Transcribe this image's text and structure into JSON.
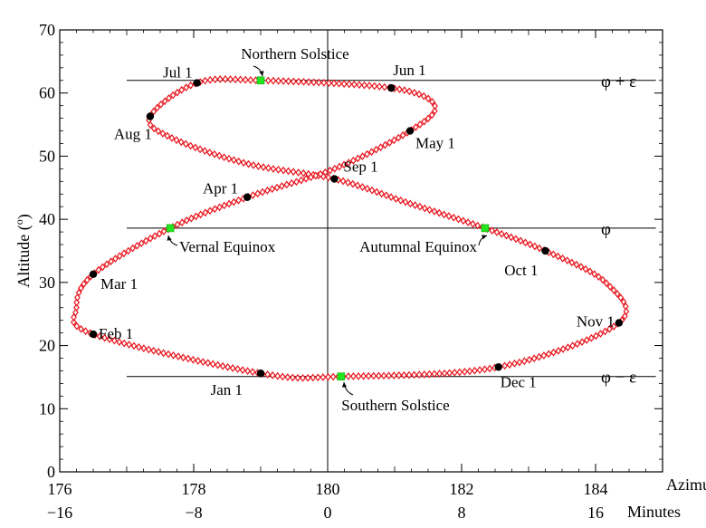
{
  "chart_data": {
    "type": "scatter",
    "title": "",
    "xlabel": "Azimuth(o)",
    "x2label": "Minutes",
    "ylabel": "Altitude (o)",
    "xlim": [
      176,
      185
    ],
    "ylim": [
      0,
      70
    ],
    "x_ticks": [
      176,
      178,
      180,
      182,
      184
    ],
    "x_tick_labels": [
      "176",
      "178",
      "180",
      "182",
      "184"
    ],
    "x2_tick_labels": [
      "−16",
      "−8",
      "0",
      "8",
      "16"
    ],
    "y_ticks": [
      0,
      10,
      20,
      30,
      40,
      50,
      60,
      70
    ],
    "y_tick_labels": [
      "0",
      "10",
      "20",
      "30",
      "40",
      "50",
      "60",
      "70"
    ],
    "grid": false,
    "reference_lines": [
      {
        "label": "φ + ε",
        "y": 62,
        "x_from": 177,
        "x_to": 184.9
      },
      {
        "label": "φ",
        "y": 38.6,
        "x_from": 177,
        "x_to": 184.9
      },
      {
        "label": "φ − ε",
        "y": 15.1,
        "x_from": 177,
        "x_to": 184.9
      }
    ],
    "vertical_line": {
      "x": 180
    },
    "analemma_color": "#e8141c",
    "month_marker_color": "#000000",
    "event_marker_color": "#22e61e",
    "month_markers": [
      {
        "label": "Jan 1",
        "x": 179.0,
        "y": 15.6
      },
      {
        "label": "Feb 1",
        "x": 176.5,
        "y": 21.8
      },
      {
        "label": "Mar 1",
        "x": 176.5,
        "y": 31.3
      },
      {
        "label": "Apr 1",
        "x": 178.8,
        "y": 43.5
      },
      {
        "label": "May 1",
        "x": 181.23,
        "y": 54.0
      },
      {
        "label": "Jun 1",
        "x": 180.95,
        "y": 60.8
      },
      {
        "label": "Jul 1",
        "x": 178.05,
        "y": 61.6
      },
      {
        "label": "Aug 1",
        "x": 177.35,
        "y": 56.3
      },
      {
        "label": "Sep 1",
        "x": 180.1,
        "y": 46.4
      },
      {
        "label": "Oct 1",
        "x": 183.25,
        "y": 35.0
      },
      {
        "label": "Nov 1",
        "x": 184.35,
        "y": 23.6
      },
      {
        "label": "Dec 1",
        "x": 182.55,
        "y": 16.6
      }
    ],
    "events": [
      {
        "label": "Northern Solstice",
        "x": 179.0,
        "y": 62.0
      },
      {
        "label": "Vernal Equinox",
        "x": 177.65,
        "y": 38.6
      },
      {
        "label": "Autumnal Equinox",
        "x": 182.35,
        "y": 38.6
      },
      {
        "label": "Southern Solstice",
        "x": 180.2,
        "y": 15.1
      }
    ],
    "analemma_control_points": [
      {
        "x": 179.0,
        "y": 62.0
      },
      {
        "x": 178.05,
        "y": 61.6
      },
      {
        "x": 177.35,
        "y": 56.3
      },
      {
        "x": 177.65,
        "y": 53.0
      },
      {
        "x": 178.8,
        "y": 48.8
      },
      {
        "x": 180.1,
        "y": 46.4
      },
      {
        "x": 181.2,
        "y": 42.6
      },
      {
        "x": 182.35,
        "y": 38.6
      },
      {
        "x": 183.25,
        "y": 35.0
      },
      {
        "x": 184.15,
        "y": 30.0
      },
      {
        "x": 184.35,
        "y": 23.6
      },
      {
        "x": 182.55,
        "y": 16.6
      },
      {
        "x": 180.2,
        "y": 15.1
      },
      {
        "x": 179.0,
        "y": 15.6
      },
      {
        "x": 176.5,
        "y": 21.8
      },
      {
        "x": 176.25,
        "y": 26.0
      },
      {
        "x": 176.5,
        "y": 31.3
      },
      {
        "x": 177.65,
        "y": 38.6
      },
      {
        "x": 178.8,
        "y": 43.5
      },
      {
        "x": 180.1,
        "y": 48.0
      },
      {
        "x": 181.23,
        "y": 54.0
      },
      {
        "x": 181.6,
        "y": 58.0
      },
      {
        "x": 180.95,
        "y": 60.8
      }
    ]
  }
}
